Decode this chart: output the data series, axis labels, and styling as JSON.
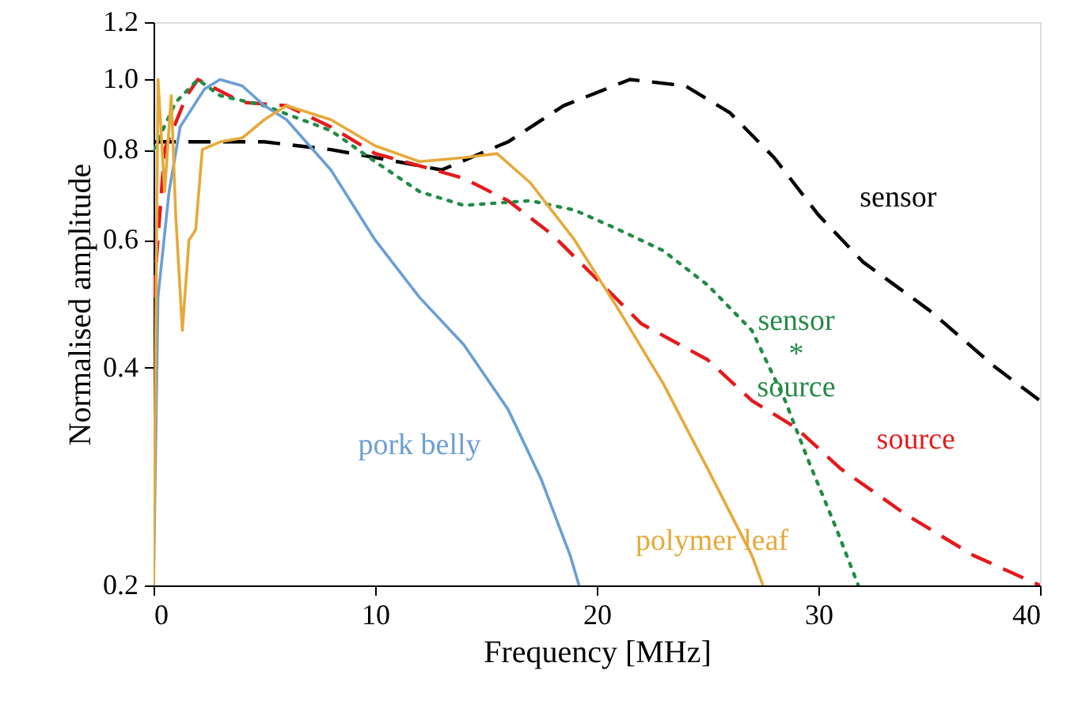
{
  "chart_data": {
    "type": "line",
    "xlabel": "Frequency [MHz]",
    "ylabel": "Normalised amplitude",
    "log": "y",
    "grid": false,
    "marker": "none",
    "xlim": [
      0,
      40
    ],
    "xticks": [
      0,
      10,
      20,
      30,
      40
    ],
    "ylim": [
      0.2,
      1.2
    ],
    "yticks": [
      0.2,
      0.4,
      0.6,
      0.8,
      {
        "value": 1,
        "label": "1.0"
      },
      1.2
    ],
    "series": [
      {
        "name": "sensor",
        "color": "#000000",
        "line_style": "dashed",
        "x": [
          0,
          2,
          5,
          8,
          10,
          13,
          16,
          18.5,
          21.5,
          24,
          26,
          28,
          30,
          32,
          35,
          38,
          40
        ],
        "values": [
          0.82,
          0.82,
          0.82,
          0.8,
          0.78,
          0.75,
          0.82,
          0.92,
          1.0,
          0.98,
          0.9,
          0.78,
          0.65,
          0.56,
          0.48,
          0.4,
          0.36
        ]
      },
      {
        "name": "source",
        "color": "#e41a1c",
        "line_style": "dashed",
        "x": [
          0,
          0.5,
          1.5,
          2,
          4,
          6,
          8,
          10,
          12,
          14,
          16,
          18,
          20,
          22,
          25,
          27,
          29,
          31,
          34,
          37,
          40
        ],
        "values": [
          0.5,
          0.8,
          0.95,
          1.0,
          0.93,
          0.92,
          0.86,
          0.79,
          0.76,
          0.73,
          0.68,
          0.61,
          0.53,
          0.46,
          0.41,
          0.36,
          0.33,
          0.29,
          0.25,
          0.22,
          0.2
        ]
      },
      {
        "name": "sensor * source",
        "color": "#238b45",
        "line_style": "dotted",
        "x": [
          0,
          1,
          2,
          3,
          5,
          8,
          10,
          12,
          14,
          17,
          19,
          21,
          23,
          25,
          27,
          28.5,
          29.5,
          30.8,
          31.8
        ],
        "values": [
          0.8,
          0.93,
          1.0,
          0.95,
          0.92,
          0.85,
          0.77,
          0.7,
          0.67,
          0.68,
          0.66,
          0.62,
          0.58,
          0.52,
          0.45,
          0.36,
          0.3,
          0.24,
          0.2
        ]
      },
      {
        "name": "pork belly",
        "color": "#6a9fd4",
        "line_style": "solid",
        "x": [
          0,
          0.2,
          0.7,
          1.2,
          2.3,
          3,
          4,
          5,
          6,
          8,
          10,
          12,
          14,
          16,
          17.5,
          18.8,
          19.2
        ],
        "values": [
          0.2,
          0.5,
          0.7,
          0.86,
          0.97,
          1.0,
          0.98,
          0.92,
          0.88,
          0.75,
          0.6,
          0.5,
          0.43,
          0.35,
          0.28,
          0.22,
          0.2
        ]
      },
      {
        "name": "polymer leaf",
        "color": "#e6a93a",
        "line_style": "solid",
        "x": [
          0,
          0.2,
          0.5,
          0.8,
          1.0,
          1.3,
          1.6,
          1.9,
          2.2,
          3,
          4,
          5,
          6,
          8,
          10,
          12,
          14,
          15.5,
          17,
          19,
          21,
          23,
          25,
          27,
          27.5
        ],
        "values": [
          0.2,
          1.0,
          0.7,
          0.95,
          0.65,
          0.45,
          0.6,
          0.62,
          0.8,
          0.82,
          0.83,
          0.88,
          0.92,
          0.88,
          0.81,
          0.77,
          0.78,
          0.79,
          0.72,
          0.6,
          0.48,
          0.38,
          0.29,
          0.22,
          0.2
        ]
      }
    ]
  }
}
